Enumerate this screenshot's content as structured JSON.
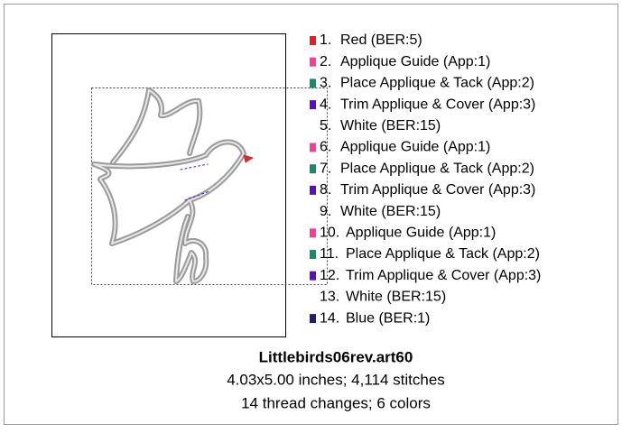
{
  "design": {
    "threads": [
      {
        "number": "1.",
        "label": "Red (BER:5)",
        "color": "#e0202a"
      },
      {
        "number": "2.",
        "label": "Applique Guide (App:1)",
        "color": "#f0409a"
      },
      {
        "number": "3.",
        "label": "Place Applique & Tack (App:2)",
        "color": "#1a8a6a"
      },
      {
        "number": "4.",
        "label": "Trim Applique & Cover (App:3)",
        "color": "#5a10c0"
      },
      {
        "number": "5.",
        "label": "White (BER:15)",
        "color": "#ffffff"
      },
      {
        "number": "6.",
        "label": "Applique Guide (App:1)",
        "color": "#f0409a"
      },
      {
        "number": "7.",
        "label": "Place Applique & Tack (App:2)",
        "color": "#1a8a6a"
      },
      {
        "number": "8.",
        "label": "Trim Applique & Cover (App:3)",
        "color": "#5a10c0"
      },
      {
        "number": "9.",
        "label": "White (BER:15)",
        "color": "#ffffff"
      },
      {
        "number": "10.",
        "label": "Applique Guide (App:1)",
        "color": "#f0409a"
      },
      {
        "number": "11.",
        "label": "Place Applique & Tack (App:2)",
        "color": "#1a8a6a"
      },
      {
        "number": "12.",
        "label": "Trim Applique & Cover (App:3)",
        "color": "#5a10c0"
      },
      {
        "number": "13.",
        "label": "White (BER:15)",
        "color": "#ffffff"
      },
      {
        "number": "14.",
        "label": "Blue (BER:1)",
        "color": "#20206a"
      }
    ],
    "filename": "Littlebirds06rev.art60",
    "size_line": "4.03x5.00 inches; 4,114 stitches",
    "changes_line": "14 thread changes; 6 colors"
  }
}
